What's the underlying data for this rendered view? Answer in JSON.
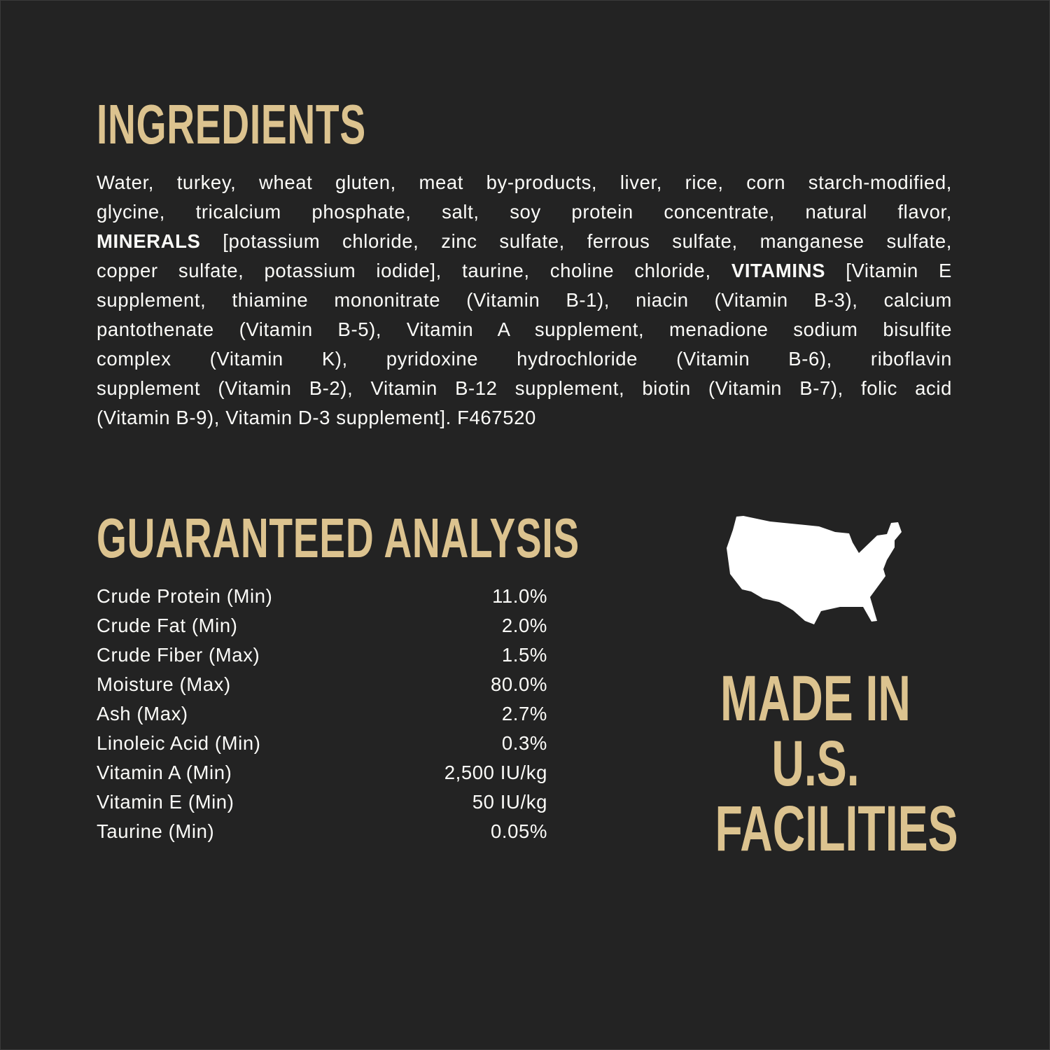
{
  "colors": {
    "background": "#232323",
    "accent_gold": "#dcc38f",
    "text": "#fbfbf8"
  },
  "ingredients": {
    "title": "INGREDIENTS",
    "lines": [
      [
        {
          "text": "Water, turkey, wheat gluten, meat by-products, liver, rice, corn starch-modified,"
        }
      ],
      [
        {
          "text": "glycine, tricalcium phosphate, salt, soy protein concentrate, natural flavor,"
        }
      ],
      [
        {
          "text": "MINERALS",
          "bold": true
        },
        {
          "text": " [potassium chloride, zinc sulfate, ferrous sulfate, manganese sulfate,"
        }
      ],
      [
        {
          "text": "copper sulfate, potassium iodide], taurine, choline chloride, "
        },
        {
          "text": "VITAMINS",
          "bold": true
        },
        {
          "text": " [Vitamin E"
        }
      ],
      [
        {
          "text": "supplement, thiamine mononitrate (Vitamin B-1), niacin (Vitamin B-3), calcium"
        }
      ],
      [
        {
          "text": "pantothenate (Vitamin B-5), Vitamin A supplement, menadione sodium bisulfite"
        }
      ],
      [
        {
          "text": "complex (Vitamin K), pyridoxine hydrochloride (Vitamin B-6), riboflavin"
        }
      ],
      [
        {
          "text": "supplement (Vitamin B-2), Vitamin B-12 supplement, biotin (Vitamin B-7), folic acid"
        }
      ],
      [
        {
          "text": "(Vitamin B-9), Vitamin D-3 supplement]. F467520"
        }
      ]
    ]
  },
  "analysis": {
    "title": "GUARANTEED ANALYSIS",
    "rows": [
      {
        "label": "Crude Protein (Min)",
        "value": "11.0%"
      },
      {
        "label": "Crude Fat (Min)",
        "value": "2.0%"
      },
      {
        "label": "Crude Fiber (Max)",
        "value": "1.5%"
      },
      {
        "label": "Moisture (Max)",
        "value": "80.0%"
      },
      {
        "label": "Ash (Max)",
        "value": "2.7%"
      },
      {
        "label": "Linoleic Acid (Min)",
        "value": "0.3%"
      },
      {
        "label": "Vitamin A (Min)",
        "value": "2,500 IU/kg"
      },
      {
        "label": "Vitamin E (Min)",
        "value": "50 IU/kg"
      },
      {
        "label": "Taurine (Min)",
        "value": "0.05%"
      }
    ]
  },
  "badge": {
    "icon": "usa-map-icon",
    "lines": [
      "MADE IN",
      "U.S.",
      "FACILITIES"
    ]
  }
}
